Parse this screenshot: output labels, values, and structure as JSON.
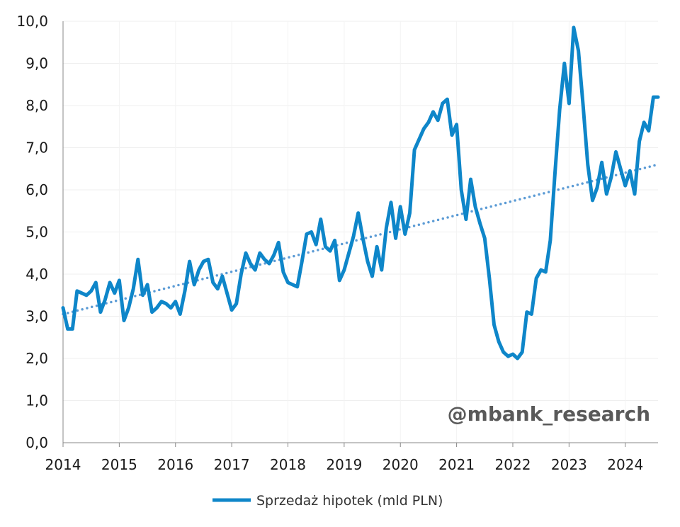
{
  "chart_data": {
    "type": "line",
    "title": "",
    "xlabel": "",
    "ylabel": "",
    "ylim": [
      0,
      10
    ],
    "xlim": [
      2014.0,
      2024.583
    ],
    "grid": true,
    "legend_position": "bottom",
    "y_ticks": [
      "0,0",
      "1,0",
      "2,0",
      "3,0",
      "4,0",
      "5,0",
      "6,0",
      "7,0",
      "8,0",
      "9,0",
      "10,0"
    ],
    "x_ticks": [
      "2014",
      "2015",
      "2016",
      "2017",
      "2018",
      "2019",
      "2020",
      "2021",
      "2022",
      "2023",
      "2024"
    ],
    "series": [
      {
        "name": "Sprzedaż hipotek (mld PLN)",
        "color": "#0e86c9",
        "x": [
          2014.0,
          2014.083,
          2014.167,
          2014.25,
          2014.333,
          2014.417,
          2014.5,
          2014.583,
          2014.667,
          2014.75,
          2014.833,
          2014.917,
          2015.0,
          2015.083,
          2015.167,
          2015.25,
          2015.333,
          2015.417,
          2015.5,
          2015.583,
          2015.667,
          2015.75,
          2015.833,
          2015.917,
          2016.0,
          2016.083,
          2016.167,
          2016.25,
          2016.333,
          2016.417,
          2016.5,
          2016.583,
          2016.667,
          2016.75,
          2016.833,
          2016.917,
          2017.0,
          2017.083,
          2017.167,
          2017.25,
          2017.333,
          2017.417,
          2017.5,
          2017.583,
          2017.667,
          2017.75,
          2017.833,
          2017.917,
          2018.0,
          2018.083,
          2018.167,
          2018.25,
          2018.333,
          2018.417,
          2018.5,
          2018.583,
          2018.667,
          2018.75,
          2018.833,
          2018.917,
          2019.0,
          2019.083,
          2019.167,
          2019.25,
          2019.333,
          2019.417,
          2019.5,
          2019.583,
          2019.667,
          2019.75,
          2019.833,
          2019.917,
          2020.0,
          2020.083,
          2020.167,
          2020.25,
          2020.333,
          2020.417,
          2020.5,
          2020.583,
          2020.667,
          2020.75,
          2020.833,
          2020.917,
          2021.0,
          2021.083,
          2021.167,
          2021.25,
          2021.333,
          2021.417,
          2021.5,
          2021.583,
          2021.667,
          2021.75,
          2021.833,
          2021.917,
          2022.0,
          2022.083,
          2022.167,
          2022.25,
          2022.333,
          2022.417,
          2022.5,
          2022.583,
          2022.667,
          2022.75,
          2022.833,
          2022.917,
          2023.0,
          2023.083,
          2023.167,
          2023.25,
          2023.333,
          2023.417,
          2023.5,
          2023.583,
          2023.667,
          2023.75,
          2023.833,
          2023.917,
          2024.0,
          2024.083,
          2024.167,
          2024.25,
          2024.333,
          2024.417,
          2024.5,
          2024.583
        ],
        "values": [
          3.2,
          2.7,
          2.7,
          3.6,
          3.55,
          3.5,
          3.6,
          3.8,
          3.1,
          3.4,
          3.8,
          3.55,
          3.85,
          2.9,
          3.2,
          3.65,
          4.35,
          3.5,
          3.75,
          3.1,
          3.2,
          3.35,
          3.3,
          3.2,
          3.35,
          3.05,
          3.6,
          4.3,
          3.75,
          4.1,
          4.3,
          4.35,
          3.8,
          3.65,
          3.95,
          3.55,
          3.15,
          3.3,
          4.0,
          4.5,
          4.25,
          4.1,
          4.5,
          4.35,
          4.25,
          4.45,
          4.75,
          4.05,
          3.8,
          3.75,
          3.7,
          4.3,
          4.95,
          5.0,
          4.7,
          5.3,
          4.65,
          4.55,
          4.8,
          3.85,
          4.1,
          4.5,
          4.9,
          5.45,
          4.85,
          4.3,
          3.95,
          4.65,
          4.1,
          5.1,
          5.7,
          4.85,
          5.6,
          4.95,
          5.45,
          6.95,
          7.2,
          7.45,
          7.6,
          7.85,
          7.65,
          8.05,
          8.15,
          7.3,
          7.55,
          6.0,
          5.3,
          6.25,
          5.6,
          5.2,
          4.85,
          3.9,
          2.8,
          2.4,
          2.15,
          2.05,
          2.1,
          2.0,
          2.15,
          3.1,
          3.05,
          3.9,
          4.1,
          4.05,
          4.8,
          6.4,
          7.9,
          9.0,
          8.05,
          9.85,
          9.3,
          8.0,
          6.6,
          5.75,
          6.05,
          6.65,
          5.9,
          6.3,
          6.9,
          6.5,
          6.1,
          6.45,
          5.9,
          7.15,
          7.6,
          7.4,
          8.2,
          8.2
        ]
      }
    ],
    "trendline": {
      "style": "dotted",
      "color": "#5b9bd5",
      "x": [
        2014.0,
        2024.583
      ],
      "values": [
        3.05,
        6.6
      ]
    }
  },
  "watermark": "@mbank_research",
  "legend": {
    "label": "Sprzedaż hipotek (mld PLN)"
  }
}
